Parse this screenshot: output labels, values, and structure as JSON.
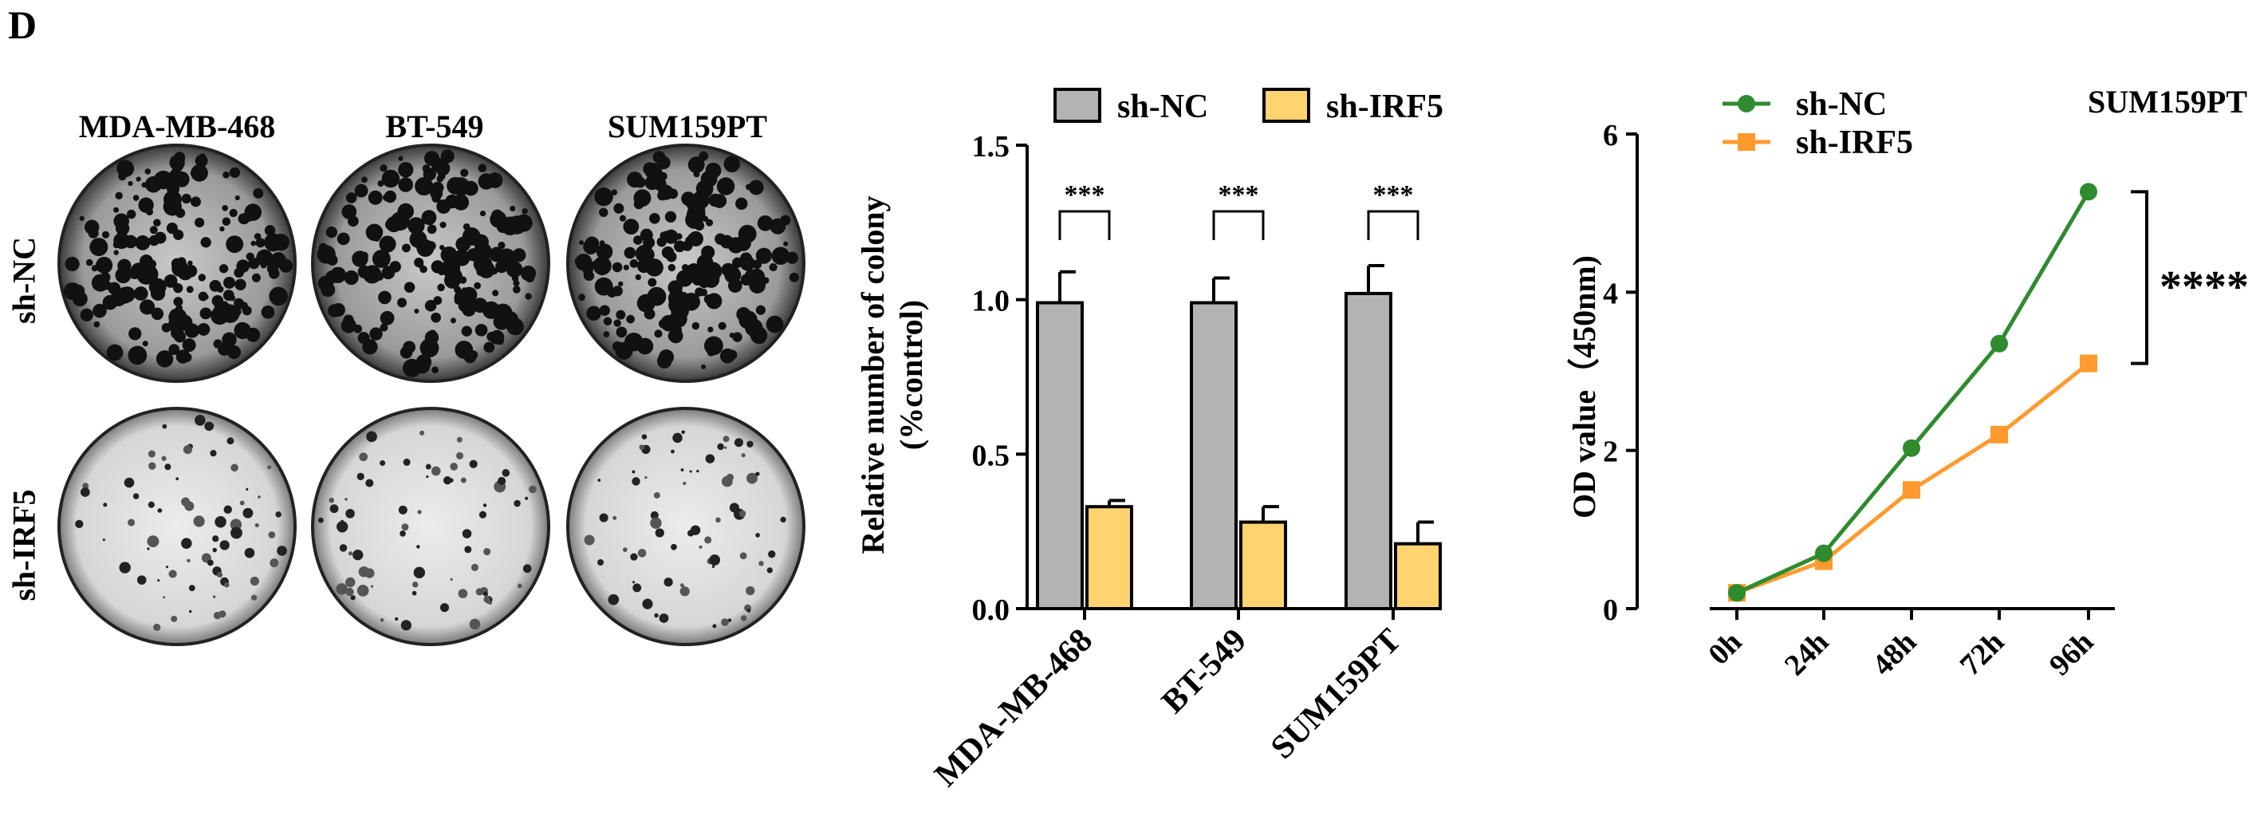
{
  "panel_label": "D",
  "colony_images": {
    "columns": [
      "MDA-MB-468",
      "BT-549",
      "SUM159PT"
    ],
    "rows": [
      "sh-NC",
      "sh-IRF5"
    ]
  },
  "chart_data": [
    {
      "type": "bar",
      "categories": [
        "MDA-MB-468",
        "BT-549",
        "SUM159PT"
      ],
      "series": [
        {
          "name": "sh-NC",
          "values": [
            0.99,
            0.99,
            1.02
          ],
          "errors": [
            0.1,
            0.08,
            0.09
          ],
          "color": "#b3b3b3"
        },
        {
          "name": "sh-IRF5",
          "values": [
            0.33,
            0.28,
            0.21
          ],
          "errors": [
            0.02,
            0.05,
            0.07
          ],
          "color": "#ffd36e"
        }
      ],
      "significance": [
        "***",
        "***",
        "***"
      ],
      "ylabel_lines": [
        "Relative number of colony",
        "(%control)"
      ],
      "ylim": [
        0,
        1.5
      ],
      "yticks": [
        "0.0",
        "0.5",
        "1.0",
        "1.5"
      ],
      "legend": "top"
    },
    {
      "type": "line",
      "title": "SUM159PT",
      "x": [
        "0h",
        "24h",
        "48h",
        "72h",
        "96h"
      ],
      "series": [
        {
          "name": "sh-NC",
          "values": [
            0.2,
            0.7,
            2.03,
            3.35,
            5.27
          ],
          "color": "#2e8b2e",
          "marker": "circle"
        },
        {
          "name": "sh-IRF5",
          "values": [
            0.2,
            0.6,
            1.5,
            2.2,
            3.1
          ],
          "color": "#ff9a2e",
          "marker": "square"
        }
      ],
      "ylabel": "OD value（450nm)",
      "ylim": [
        0,
        6
      ],
      "yticks": [
        "0",
        "2",
        "4",
        "6"
      ],
      "significance": "****",
      "legend": "top-left"
    }
  ]
}
